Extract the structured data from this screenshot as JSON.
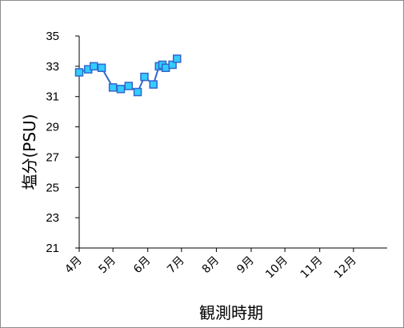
{
  "chart_data": {
    "type": "line",
    "title": "",
    "xlabel": "観測時期",
    "ylabel": "塩分(PSU)",
    "x_ticks": [
      "4月",
      "5月",
      "6月",
      "7月",
      "8月",
      "9月",
      "10月",
      "11月",
      "12月"
    ],
    "x_domain": [
      "2024-04-01",
      "2024-12-31"
    ],
    "ylim": [
      21,
      35
    ],
    "y_ticks": [
      21,
      23,
      25,
      27,
      29,
      31,
      33,
      35
    ],
    "grid": false,
    "legend": "none",
    "line_color": "#3366cc",
    "marker_color": "#33ccff",
    "series": [
      {
        "x": [
          "2024-04-01",
          "2024-04-09",
          "2024-04-14",
          "2024-04-21",
          "2024-05-01",
          "2024-05-08",
          "2024-05-15",
          "2024-05-23",
          "2024-05-29",
          "2024-06-06",
          "2024-06-11",
          "2024-06-14",
          "2024-06-17",
          "2024-06-23",
          "2024-06-27"
        ],
        "y": [
          32.6,
          32.8,
          33.0,
          32.9,
          31.6,
          31.5,
          31.7,
          31.3,
          32.3,
          31.8,
          33.0,
          33.1,
          32.9,
          33.1,
          33.5
        ]
      }
    ]
  }
}
